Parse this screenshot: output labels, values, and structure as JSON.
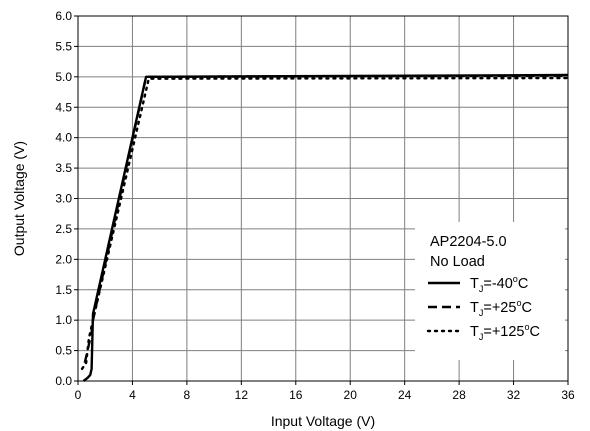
{
  "chart_data": {
    "type": "line",
    "xlabel": "Input Voltage (V)",
    "ylabel": "Output Voltage (V)",
    "xlim": [
      0,
      36
    ],
    "ylim": [
      0,
      6
    ],
    "xticks": [
      "0",
      "4",
      "8",
      "12",
      "16",
      "20",
      "24",
      "28",
      "32",
      "36"
    ],
    "yticks": [
      "0.0",
      "0.5",
      "1.0",
      "1.5",
      "2.0",
      "2.5",
      "3.0",
      "3.5",
      "4.0",
      "4.5",
      "5.0",
      "5.5",
      "6.0"
    ],
    "grid": true,
    "legend": {
      "placement": "bottom-right",
      "header": [
        "AP2204-5.0",
        "No Load"
      ],
      "entries": [
        {
          "prefix": "T",
          "sub": "J",
          "value": "=-40",
          "deg": "o",
          "unit": "C",
          "style": "solid"
        },
        {
          "prefix": "T",
          "sub": "J",
          "value": "=+25",
          "deg": "o",
          "unit": "C",
          "style": "dashed"
        },
        {
          "prefix": "T",
          "sub": "J",
          "value": "=+125",
          "deg": "o",
          "unit": "C",
          "style": "dotted"
        }
      ]
    },
    "series": [
      {
        "name": "TJ=-40°C",
        "style": "solid",
        "x": [
          0.4,
          0.7,
          0.9,
          1.0,
          1.1,
          5.0,
          36.0
        ],
        "y": [
          0.0,
          0.05,
          0.1,
          0.2,
          1.1,
          5.0,
          5.03
        ]
      },
      {
        "name": "TJ=+25°C",
        "style": "dashed",
        "x": [
          0.5,
          0.8,
          0.9,
          1.0,
          1.1,
          5.0,
          36.0
        ],
        "y": [
          0.3,
          0.6,
          0.7,
          0.8,
          1.0,
          5.0,
          5.02
        ]
      },
      {
        "name": "TJ=+125°C",
        "style": "dotted",
        "x": [
          0.3,
          0.6,
          0.8,
          1.0,
          1.2,
          5.2,
          36.0
        ],
        "y": [
          0.2,
          0.3,
          0.7,
          0.9,
          1.1,
          4.97,
          4.98
        ]
      }
    ]
  }
}
